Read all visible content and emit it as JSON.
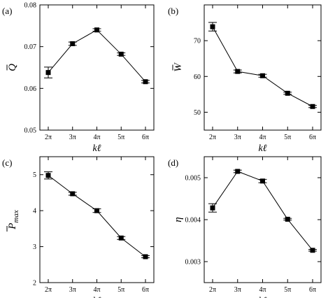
{
  "chart_data": [
    {
      "type": "line",
      "panel_label": "(a)",
      "ylabel": "Q",
      "ylabel_accent": "bar",
      "ylabel_sub": "",
      "xlabel": "kℓ",
      "categories": [
        "2π",
        "3π",
        "4π",
        "5π",
        "6π"
      ],
      "values": [
        0.0638,
        0.0707,
        0.074,
        0.0682,
        0.0616
      ],
      "errors": [
        0.0013,
        0.0004,
        0.0003,
        0.0003,
        0.0003
      ],
      "ylim": [
        0.05,
        0.08
      ],
      "yticks": [
        0.05,
        0.06,
        0.07,
        0.08
      ],
      "ytick_labels": [
        "0.05",
        "0.06",
        "0.07",
        "0.08"
      ],
      "grid": false,
      "marker": "square"
    },
    {
      "type": "line",
      "panel_label": "(b)",
      "ylabel": "W",
      "ylabel_accent": "bar",
      "ylabel_sub": "",
      "xlabel": "kℓ",
      "categories": [
        "2π",
        "3π",
        "4π",
        "5π",
        "6π"
      ],
      "values": [
        73.9,
        61.4,
        60.2,
        55.3,
        51.6
      ],
      "errors": [
        1.2,
        0.4,
        0.4,
        0.3,
        0.3
      ],
      "ylim": [
        45,
        80
      ],
      "yticks": [
        50,
        60,
        70
      ],
      "ytick_labels": [
        "50",
        "60",
        "70"
      ],
      "grid": false,
      "marker": "square"
    },
    {
      "type": "line",
      "panel_label": "(c)",
      "ylabel": "P",
      "ylabel_accent": "bar",
      "ylabel_sub": "max",
      "xlabel": "kℓ",
      "categories": [
        "2π",
        "3π",
        "4π",
        "5π",
        "6π"
      ],
      "values": [
        4.98,
        4.47,
        4.0,
        3.24,
        2.72
      ],
      "errors": [
        0.1,
        0.04,
        0.05,
        0.04,
        0.03
      ],
      "ylim": [
        2,
        5.5
      ],
      "yticks": [
        2,
        3,
        4,
        5
      ],
      "ytick_labels": [
        "2",
        "3",
        "4",
        "5"
      ],
      "grid": false,
      "marker": "square"
    },
    {
      "type": "line",
      "panel_label": "(d)",
      "ylabel": "η",
      "ylabel_accent": "",
      "ylabel_sub": "",
      "xlabel": "kℓ",
      "categories": [
        "2π",
        "3π",
        "4π",
        "5π",
        "6π"
      ],
      "values": [
        0.00428,
        0.00515,
        0.00492,
        0.00401,
        0.00327
      ],
      "errors": [
        0.0001,
        3e-05,
        4e-05,
        2e-05,
        2e-05
      ],
      "ylim": [
        0.0025,
        0.0055
      ],
      "yticks": [
        0.003,
        0.004,
        0.005
      ],
      "ytick_labels": [
        "0.003",
        "0.004",
        "0.005"
      ],
      "grid": false,
      "marker": "square"
    }
  ]
}
